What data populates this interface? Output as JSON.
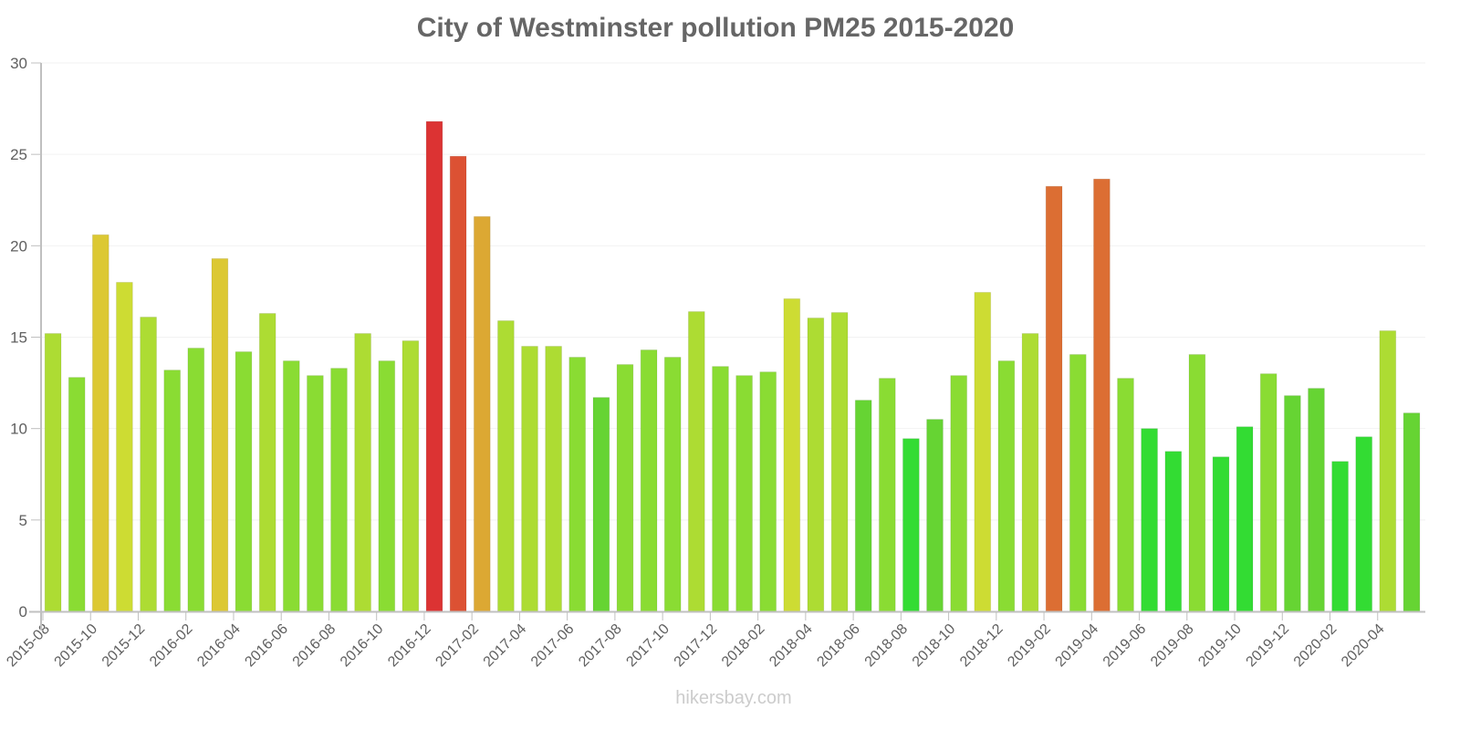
{
  "title": "City of Westminster pollution PM25 2015-2020",
  "watermark": "hikersbay.com",
  "chart_data": {
    "type": "bar",
    "title": "City of Westminster pollution PM25 2015-2020",
    "xlabel": "",
    "ylabel": "",
    "ylim": [
      0,
      30
    ],
    "yticks": [
      0,
      5,
      10,
      15,
      20,
      25,
      30
    ],
    "grid": true,
    "legend": null,
    "categories": [
      "2015-08",
      "2015-09",
      "2015-10",
      "2015-11",
      "2015-12",
      "2016-01",
      "2016-02",
      "2016-03",
      "2016-04",
      "2016-05",
      "2016-06",
      "2016-07",
      "2016-08",
      "2016-09",
      "2016-10",
      "2016-11",
      "2016-12",
      "2017-01",
      "2017-02",
      "2017-03",
      "2017-04",
      "2017-05",
      "2017-06",
      "2017-07",
      "2017-08",
      "2017-09",
      "2017-10",
      "2017-11",
      "2017-12",
      "2018-01",
      "2018-02",
      "2018-03",
      "2018-04",
      "2018-05",
      "2018-06",
      "2018-07",
      "2018-08",
      "2018-09",
      "2018-10",
      "2018-11",
      "2018-12",
      "2019-01",
      "2019-02",
      "2019-03",
      "2019-04",
      "2019-05",
      "2019-06",
      "2019-07",
      "2019-08",
      "2019-09",
      "2019-10",
      "2019-11",
      "2019-12",
      "2020-01",
      "2020-02",
      "2020-03",
      "2020-04",
      "2020-05"
    ],
    "tick_labels_shown": [
      "2015-08",
      "2015-10",
      "2015-12",
      "2016-02",
      "2016-04",
      "2016-06",
      "2016-08",
      "2016-10",
      "2016-12",
      "2017-02",
      "2017-04",
      "2017-06",
      "2017-08",
      "2017-10",
      "2017-12",
      "2018-02",
      "2018-04",
      "2018-06",
      "2018-08",
      "2018-10",
      "2018-12",
      "2019-02",
      "2019-04",
      "2019-06",
      "2019-08",
      "2019-10",
      "2019-12",
      "2020-02",
      "2020-04"
    ],
    "values": [
      15.2,
      12.8,
      20.6,
      18.0,
      16.1,
      13.2,
      14.4,
      19.3,
      14.2,
      16.3,
      13.7,
      12.9,
      13.3,
      15.2,
      13.7,
      14.8,
      26.8,
      24.9,
      21.6,
      15.9,
      14.5,
      14.5,
      13.9,
      11.7,
      13.5,
      14.3,
      13.9,
      16.4,
      13.4,
      12.9,
      13.1,
      17.1,
      16.05,
      16.35,
      11.55,
      12.75,
      9.45,
      10.5,
      12.9,
      17.45,
      13.7,
      15.2,
      23.25,
      14.05,
      23.65,
      12.75,
      10.0,
      8.75,
      14.05,
      8.45,
      10.1,
      13.0,
      11.8,
      12.2,
      8.2,
      9.55,
      15.35,
      10.85
    ],
    "colors": [
      "#addc33",
      "#8adc33",
      "#dcc833",
      "#cddc33",
      "#addc33",
      "#8adc33",
      "#8adc33",
      "#dcc833",
      "#8adc33",
      "#addc33",
      "#8adc33",
      "#8adc33",
      "#8adc33",
      "#addc33",
      "#8adc33",
      "#addc33",
      "#dc3333",
      "#dc5133",
      "#dca833",
      "#addc33",
      "#addc33",
      "#addc33",
      "#8adc33",
      "#66d433",
      "#8adc33",
      "#8adc33",
      "#8adc33",
      "#addc33",
      "#8adc33",
      "#8adc33",
      "#8adc33",
      "#cddc33",
      "#addc33",
      "#addc33",
      "#66d433",
      "#8adc33",
      "#33dc33",
      "#66d433",
      "#8adc33",
      "#cddc33",
      "#8adc33",
      "#addc33",
      "#dc6e33",
      "#8adc33",
      "#dc6e33",
      "#8adc33",
      "#33dc33",
      "#33dc33",
      "#8adc33",
      "#33dc33",
      "#33dc33",
      "#8adc33",
      "#66d433",
      "#66d433",
      "#33dc33",
      "#33dc33",
      "#addc33",
      "#66d433"
    ]
  }
}
